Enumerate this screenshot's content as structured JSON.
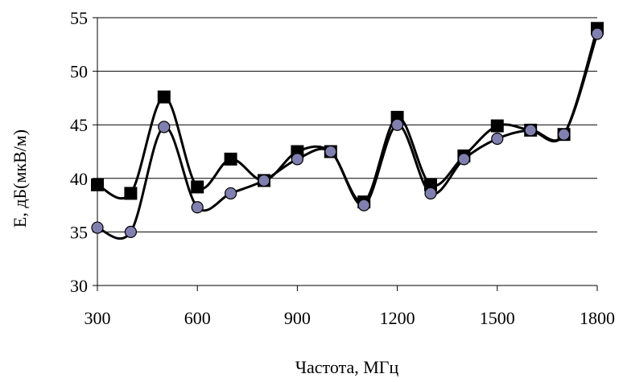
{
  "chart_data": {
    "type": "line",
    "xlabel": "Частота, МГц",
    "ylabel": "Е, дБ(мкВ/м)",
    "xlim": [
      300,
      1800
    ],
    "ylim": [
      30,
      55
    ],
    "xticks": [
      "300",
      "600",
      "900",
      "1200",
      "1500",
      "1800"
    ],
    "yticks": [
      "30",
      "35",
      "40",
      "45",
      "50",
      "55"
    ],
    "grid": "horizontal",
    "legend": "none",
    "series": [
      {
        "marker": "square",
        "color": "#000000",
        "x": [
          300,
          400,
          500,
          600,
          700,
          800,
          900,
          1000,
          1100,
          1200,
          1300,
          1400,
          1500,
          1600,
          1700,
          1800
        ],
        "values": [
          39.4,
          38.6,
          47.6,
          39.2,
          41.8,
          39.8,
          42.5,
          42.5,
          37.8,
          45.7,
          39.4,
          42.1,
          44.9,
          44.5,
          44.1,
          54.0
        ]
      },
      {
        "marker": "circle",
        "color": "#8080b0",
        "x": [
          300,
          400,
          500,
          600,
          700,
          800,
          900,
          1000,
          1100,
          1200,
          1300,
          1400,
          1500,
          1600,
          1700,
          1800
        ],
        "values": [
          35.4,
          35.0,
          44.8,
          37.3,
          38.6,
          39.8,
          41.8,
          42.5,
          37.5,
          45.0,
          38.6,
          41.8,
          43.7,
          44.5,
          44.1,
          53.5
        ]
      }
    ]
  }
}
